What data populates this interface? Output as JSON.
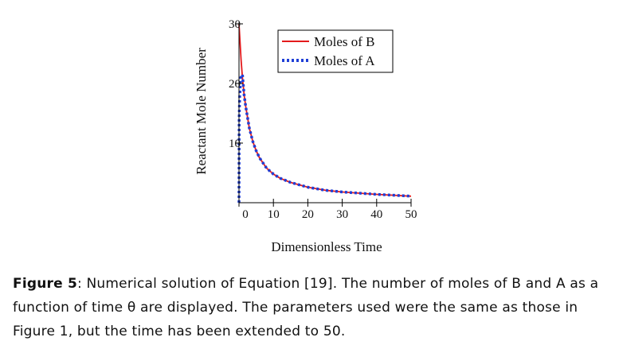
{
  "chart_data": {
    "type": "line",
    "title": "",
    "xlabel": "Dimensionless Time",
    "ylabel": "Reactant Mole Number",
    "xlim": [
      0,
      50
    ],
    "ylim": [
      0,
      30
    ],
    "xticks": [
      "0",
      "10",
      "20",
      "30",
      "40",
      "50"
    ],
    "yticks": [
      "10",
      "20",
      "30"
    ],
    "legend_position": "top-right",
    "grid": false,
    "series": [
      {
        "name": "Moles of B",
        "color": "#e31a1c",
        "style": "solid",
        "x": [
          0,
          0.3,
          0.6,
          1,
          1.5,
          2,
          3,
          4,
          5,
          6,
          8,
          10,
          12,
          15,
          20,
          25,
          30,
          35,
          40,
          45,
          50
        ],
        "y": [
          30,
          27,
          24,
          21,
          18,
          16,
          12.5,
          10.3,
          8.7,
          7.5,
          5.8,
          4.8,
          4.1,
          3.4,
          2.6,
          2.1,
          1.8,
          1.6,
          1.4,
          1.25,
          1.1
        ]
      },
      {
        "name": "Moles of A",
        "color": "#1f3fd6",
        "style": "dotted",
        "x": [
          0,
          0.05,
          0.2,
          0.5,
          1,
          1.5,
          2,
          3,
          4,
          5,
          6,
          8,
          10,
          12,
          15,
          20,
          25,
          30,
          35,
          40,
          45,
          50
        ],
        "y": [
          0,
          14,
          18,
          21,
          21.5,
          18,
          16,
          12.5,
          10.3,
          8.7,
          7.5,
          5.8,
          4.8,
          4.1,
          3.4,
          2.6,
          2.1,
          1.8,
          1.6,
          1.4,
          1.25,
          1.1
        ]
      }
    ]
  },
  "caption": {
    "label": "Figure 5",
    "text": ": Numerical solution of Equation [19].  The number of moles of B and A as a function of time θ are displayed. The parameters used were the same as those in Figure 1, but the time has been extended to 50."
  }
}
